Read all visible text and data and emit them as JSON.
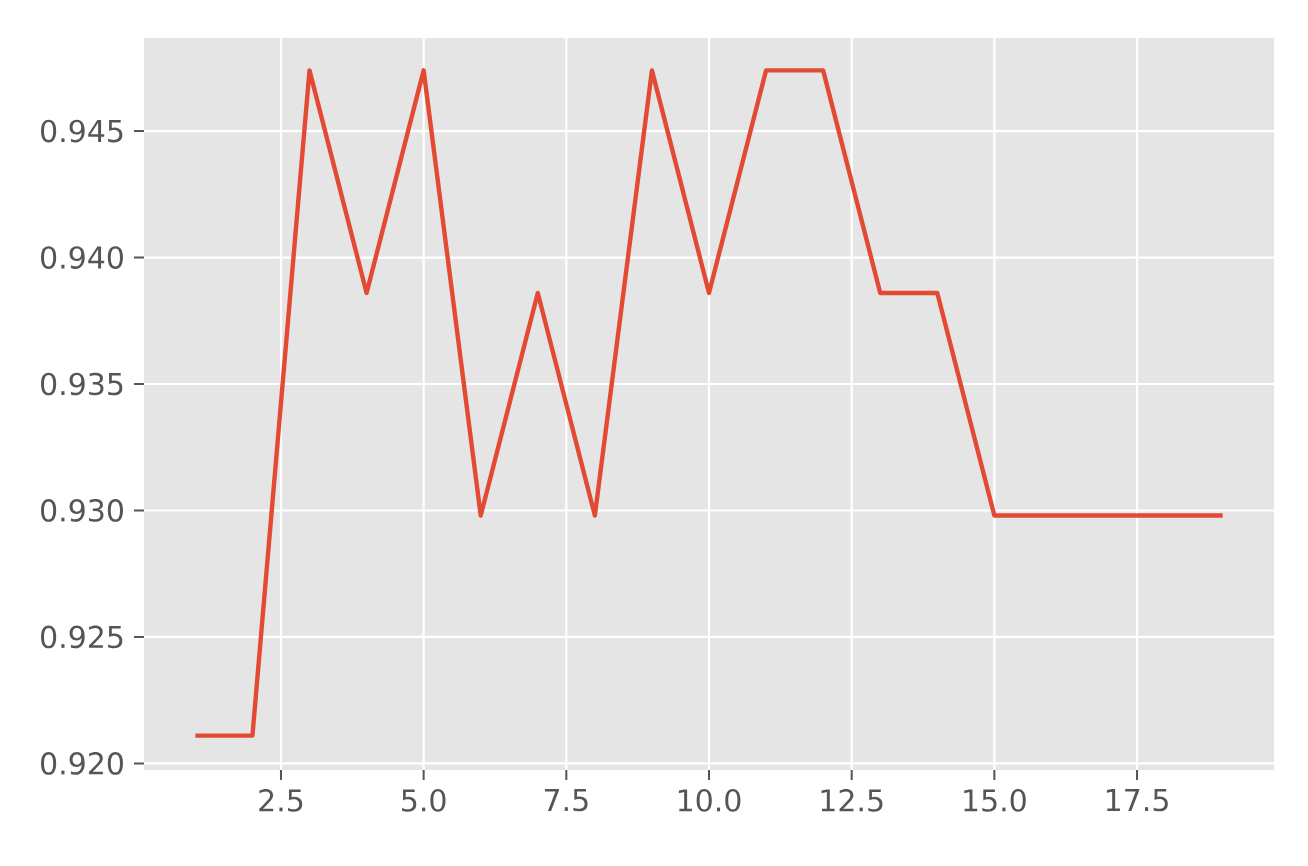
{
  "chart_data": {
    "type": "line",
    "x": [
      1,
      2,
      3,
      4,
      5,
      6,
      7,
      8,
      9,
      10,
      11,
      12,
      13,
      14,
      15,
      16,
      17,
      18,
      19
    ],
    "values": [
      0.9211,
      0.9211,
      0.9474,
      0.9386,
      0.9474,
      0.9298,
      0.9386,
      0.9298,
      0.9474,
      0.9386,
      0.9474,
      0.9474,
      0.9386,
      0.9386,
      0.9298,
      0.9298,
      0.9298,
      0.9298,
      0.9298
    ],
    "color": "#e24a33",
    "marker": "none",
    "line_style": "solid",
    "grid": true,
    "xlim": [
      0.1,
      19.9
    ],
    "ylim": [
      0.91974,
      0.94868
    ],
    "xticks": [
      2.5,
      {
        "value": 5.0,
        "label": "5.0"
      },
      7.5,
      {
        "value": 10.0,
        "label": "10.0"
      },
      12.5,
      {
        "value": 15.0,
        "label": "15.0"
      },
      17.5
    ],
    "yticks": [
      {
        "value": 0.92,
        "label": "0.920"
      },
      0.925,
      {
        "value": 0.93,
        "label": "0.930"
      },
      0.935,
      {
        "value": 0.94,
        "label": "0.940"
      },
      0.945
    ]
  }
}
